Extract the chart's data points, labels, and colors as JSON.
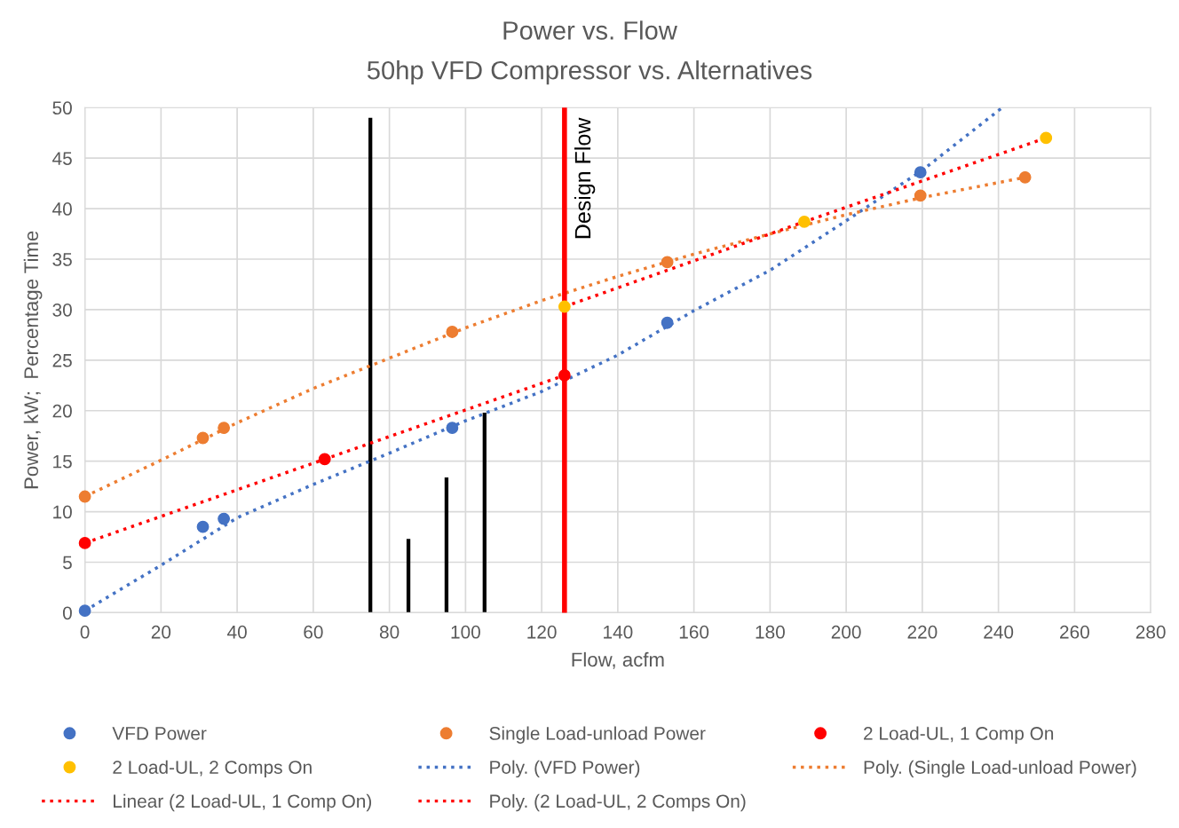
{
  "chart_data": {
    "type": "scatter",
    "title": "Power vs. Flow",
    "subtitle": "50hp VFD Compressor vs. Alternatives",
    "xlabel": "Flow, acfm",
    "ylabel": "Power, kW;  Percentage Time",
    "xlim": [
      0,
      280
    ],
    "xticks": [
      0,
      20,
      40,
      60,
      80,
      100,
      120,
      140,
      160,
      180,
      200,
      220,
      240,
      260,
      280
    ],
    "ylim": [
      0,
      50
    ],
    "yticks": [
      0,
      5,
      10,
      15,
      20,
      25,
      30,
      35,
      40,
      45,
      50
    ],
    "grid": true,
    "legend": "bottom",
    "series": [
      {
        "type": "bar",
        "color": "#000000",
        "x": [
          75,
          85,
          95,
          105
        ],
        "values": [
          49.0,
          7.3,
          13.4,
          19.8
        ]
      },
      {
        "name": "VFD Power",
        "marker": "circle",
        "color": "#4472c4",
        "x": [
          0,
          31,
          36.5,
          96.5,
          153,
          219.5
        ],
        "values": [
          0.2,
          8.5,
          9.3,
          18.3,
          28.7,
          43.6
        ]
      },
      {
        "name": "Single Load-unload Power",
        "marker": "circle",
        "color": "#ed7d31",
        "x": [
          0,
          31,
          36.5,
          96.5,
          153,
          219.5,
          247
        ],
        "values": [
          11.5,
          17.3,
          18.3,
          27.8,
          34.7,
          41.3,
          43.1
        ]
      },
      {
        "name": "2 Load-UL, 1 Comp On",
        "marker": "circle",
        "color": "#ff0000",
        "x": [
          0,
          63,
          126
        ],
        "values": [
          6.9,
          15.2,
          23.5
        ]
      },
      {
        "name": "2 Load-UL, 2 Comps On",
        "marker": "circle",
        "color": "#ffc000",
        "x": [
          126,
          189,
          252.5
        ],
        "values": [
          30.3,
          38.7,
          47.0
        ]
      },
      {
        "name": "Poly. (VFD Power)",
        "type": "line",
        "line_style": "dotted",
        "marker": "none",
        "color": "#4472c4",
        "x": [
          0,
          20,
          40,
          60,
          80,
          100,
          120,
          140,
          160,
          180,
          200,
          220,
          241
        ],
        "values": [
          0.2,
          4.7,
          9.4,
          12.7,
          15.8,
          19.0,
          21.9,
          25.5,
          29.9,
          33.9,
          38.8,
          43.8,
          50.0
        ]
      },
      {
        "name": "Poly. (Single Load-unload Power)",
        "type": "line",
        "line_style": "dotted",
        "marker": "none",
        "color": "#ed7d31",
        "x": [
          0,
          20,
          40,
          60,
          80,
          100,
          120,
          140,
          160,
          180,
          200,
          220,
          247
        ],
        "values": [
          11.5,
          15.1,
          18.8,
          22.2,
          25.2,
          28.2,
          30.9,
          33.3,
          35.5,
          37.5,
          39.4,
          41.1,
          43.1
        ]
      },
      {
        "name": "Linear (2 Load-UL, 1 Comp On)",
        "type": "line",
        "line_style": "dotted",
        "marker": "none",
        "color": "#ff0000",
        "x": [
          0,
          126
        ],
        "values": [
          6.9,
          23.5
        ]
      },
      {
        "name": "Poly. (2 Load-UL, 2 Comps On)",
        "type": "line",
        "line_style": "dotted",
        "marker": "none",
        "color": "#ff0000",
        "x": [
          126,
          189,
          252.5
        ],
        "values": [
          30.3,
          38.7,
          47.0
        ]
      }
    ],
    "ref_lines": [
      {
        "axis": "x",
        "value": 126,
        "label": "Design Flow",
        "color": "#ff0000",
        "line_style": "solid"
      }
    ]
  }
}
